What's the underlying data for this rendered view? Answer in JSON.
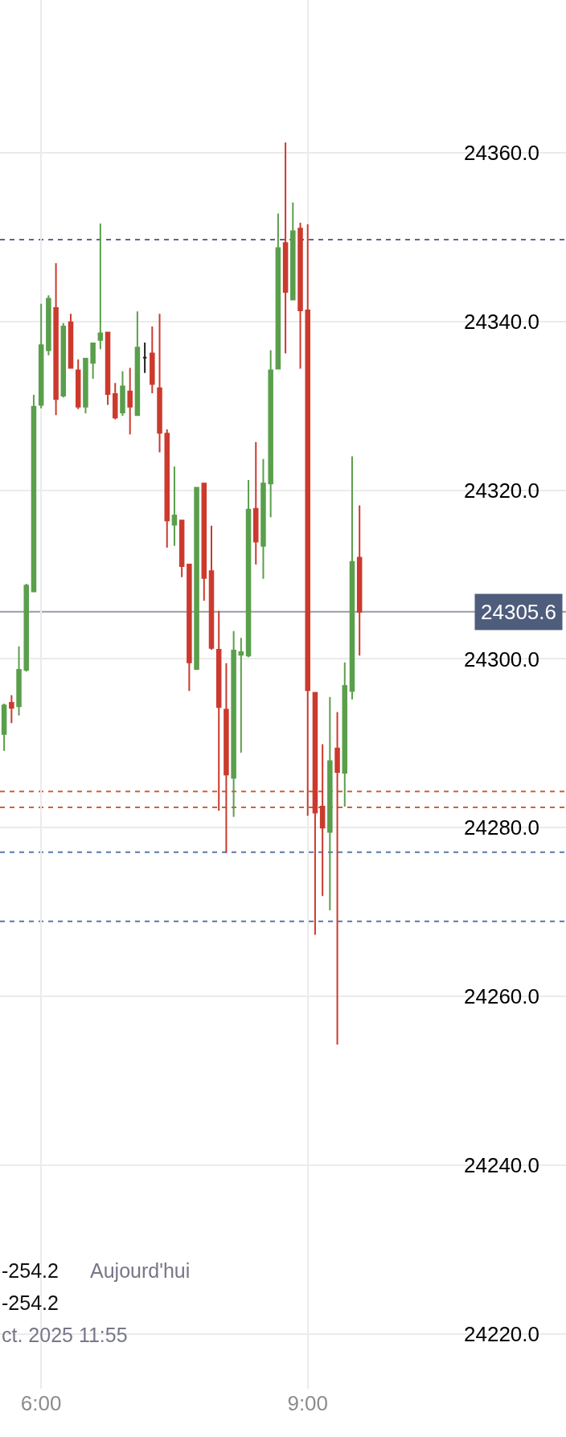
{
  "chart_data": {
    "type": "candlestick",
    "x": [
      5.5833,
      5.6667,
      5.75,
      5.8333,
      5.9167,
      6,
      6.0833,
      6.1667,
      6.25,
      6.3333,
      6.4167,
      6.5,
      6.5833,
      6.6667,
      6.75,
      6.8333,
      6.9167,
      7,
      7.0833,
      7.1667,
      7.25,
      7.3333,
      7.4167,
      7.5,
      7.5833,
      7.6667,
      7.75,
      7.8333,
      7.9167,
      8,
      8.0833,
      8.1667,
      8.25,
      8.3333,
      8.4167,
      8.5,
      8.5833,
      8.6667,
      8.75,
      8.8333,
      8.9167,
      9,
      9.0833,
      9.1667,
      9.25,
      9.3333,
      9.4167,
      9.5,
      9.5833
    ],
    "ohlc": [
      [
        24291.1,
        24294.7,
        24289.1,
        24294.5
      ],
      [
        24294.8,
        24295.7,
        24292.4,
        24294.2
      ],
      [
        24294.4,
        24301.5,
        24293.3,
        24298.7
      ],
      [
        24298.7,
        24308.9,
        24298.5,
        24308.7
      ],
      [
        24308.0,
        24331.3,
        24308.0,
        24329.9
      ],
      [
        24330.1,
        24342.1,
        24329.7,
        24337.2
      ],
      [
        24336.6,
        24343.1,
        24336.0,
        24342.7
      ],
      [
        24341.6,
        24346.9,
        24328.9,
        24330.8
      ],
      [
        24331.2,
        24339.8,
        24331.0,
        24339.4
      ],
      [
        24339.9,
        24340.9,
        24334.5,
        24334.5
      ],
      [
        24334.2,
        24335.5,
        24329.6,
        24329.9
      ],
      [
        24329.9,
        24335.6,
        24329.1,
        24335.6
      ],
      [
        24335.1,
        24337.4,
        24333.2,
        24337.4
      ],
      [
        24337.8,
        24351.6,
        24336.7,
        24338.6
      ],
      [
        24338.7,
        24338.7,
        24330.1,
        24331.4
      ],
      [
        24331.4,
        24332.7,
        24328.4,
        24328.6
      ],
      [
        24329.2,
        24334.1,
        24328.8,
        24332.3
      ],
      [
        24331.7,
        24334.5,
        24326.6,
        24329.9
      ],
      [
        24328.9,
        24341.2,
        24328.9,
        24336.9
      ],
      [
        24335.7,
        24337.5,
        24333.9,
        24335.7
      ],
      [
        24336.2,
        24339.4,
        24331.5,
        24332.6
      ],
      [
        24332.1,
        24340.9,
        24324.5,
        24326.8
      ],
      [
        24326.7,
        24327.2,
        24313.2,
        24316.4
      ],
      [
        24315.9,
        24322.8,
        24313.4,
        24317.0
      ],
      [
        24316.4,
        24316.4,
        24309.7,
        24311.0
      ],
      [
        24311.2,
        24311.2,
        24296.2,
        24299.6
      ],
      [
        24298.8,
        24320.3,
        24298.8,
        24320.3
      ],
      [
        24320.8,
        24320.8,
        24306.9,
        24309.6
      ],
      [
        24310.4,
        24315.8,
        24301.1,
        24301.3
      ],
      [
        24301.1,
        24305.7,
        24282.0,
        24294.3
      ],
      [
        24294.0,
        24299.5,
        24277.0,
        24286.3
      ],
      [
        24285.9,
        24303.3,
        24281.3,
        24301.0
      ],
      [
        24300.5,
        24302.5,
        24288.9,
        24300.8
      ],
      [
        24300.4,
        24321.2,
        24300.2,
        24317.7
      ],
      [
        24317.8,
        24325.7,
        24311.2,
        24313.9
      ],
      [
        24313.4,
        24323.7,
        24309.5,
        24320.8
      ],
      [
        24320.8,
        24336.6,
        24316.8,
        24334.2
      ],
      [
        24334.4,
        24352.8,
        24334.4,
        24348.7
      ],
      [
        24349.3,
        24361.2,
        24336.2,
        24343.5
      ],
      [
        24342.6,
        24354.1,
        24342.6,
        24350.7
      ],
      [
        24351.0,
        24351.7,
        24334.4,
        24341.3
      ],
      [
        24341.3,
        24351.5,
        24281.4,
        24296.3
      ],
      [
        24296.0,
        24296.0,
        24267.3,
        24281.8
      ],
      [
        24282.5,
        24289.9,
        24271.9,
        24280.0
      ],
      [
        24279.5,
        24295.5,
        24270.2,
        24287.9
      ],
      [
        24289.4,
        24293.7,
        24254.3,
        24286.6
      ],
      [
        24286.5,
        24299.6,
        24282.5,
        24296.8
      ],
      [
        24296.2,
        24324.0,
        24295.2,
        24311.5
      ],
      [
        24312.0,
        24318.2,
        24300.4,
        24305.6
      ]
    ],
    "colors": [
      "#5a9f4c",
      "#cc3a2e",
      "#5a9f4c",
      "#5a9f4c",
      "#5a9f4c",
      "#5a9f4c",
      "#5a9f4c",
      "#cc3a2e",
      "#5a9f4c",
      "#cc3a2e",
      "#cc3a2e",
      "#5a9f4c",
      "#5a9f4c",
      "#5a9f4c",
      "#cc3a2e",
      "#cc3a2e",
      "#5a9f4c",
      "#cc3a2e",
      "#5a9f4c",
      "#222222",
      "#cc3a2e",
      "#cc3a2e",
      "#cc3a2e",
      "#5a9f4c",
      "#cc3a2e",
      "#cc3a2e",
      "#5a9f4c",
      "#cc3a2e",
      "#cc3a2e",
      "#cc3a2e",
      "#cc3a2e",
      "#5a9f4c",
      "#5a9f4c",
      "#5a9f4c",
      "#cc3a2e",
      "#5a9f4c",
      "#5a9f4c",
      "#5a9f4c",
      "#cc3a2e",
      "#5a9f4c",
      "#cc3a2e",
      "#cc3a2e",
      "#cc3a2e",
      "#cc3a2e",
      "#5a9f4c",
      "#cc3a2e",
      "#5a9f4c",
      "#5a9f4c",
      "#cc3a2e"
    ],
    "xlim": [
      5.537,
      11.907
    ],
    "xticks": [
      {
        "value": 6,
        "label": "6:00"
      },
      {
        "value": 9,
        "label": "9:00"
      }
    ],
    "ylim": [
      24213.5,
      24378.1
    ],
    "yticks": [
      {
        "value": 24220,
        "label": "24220.0"
      },
      {
        "value": 24240,
        "label": "24240.0"
      },
      {
        "value": 24260,
        "label": "24260.0"
      },
      {
        "value": 24280,
        "label": "24280.0"
      },
      {
        "value": 24300,
        "label": "24300.0"
      },
      {
        "value": 24320,
        "label": "24320.0"
      },
      {
        "value": 24340,
        "label": "24340.0"
      },
      {
        "value": 24360,
        "label": "24360.0"
      }
    ],
    "grid": true,
    "ref_lines": [
      {
        "axis": "y",
        "value": 24349.7,
        "color": "#6a5f95",
        "line_style": "dashed"
      },
      {
        "axis": "y",
        "value": 24305.6,
        "label": "24305.6",
        "color": "#9b9aa8",
        "line_style": "solid"
      },
      {
        "axis": "y",
        "value": 24284.3,
        "color": "#d0603a",
        "line_style": "dashed"
      },
      {
        "axis": "y",
        "value": 24282.4,
        "color": "#d0603a",
        "line_style": "dashed"
      },
      {
        "axis": "y",
        "value": 24277.1,
        "color": "#5a78a8",
        "line_style": "dashed"
      },
      {
        "axis": "y",
        "value": 24268.9,
        "color": "#5a78a8",
        "line_style": "dashed"
      }
    ],
    "annotations": [
      "-254.2",
      "Aujourd'hui",
      "-254.2",
      "ct. 2025 11:55"
    ]
  }
}
